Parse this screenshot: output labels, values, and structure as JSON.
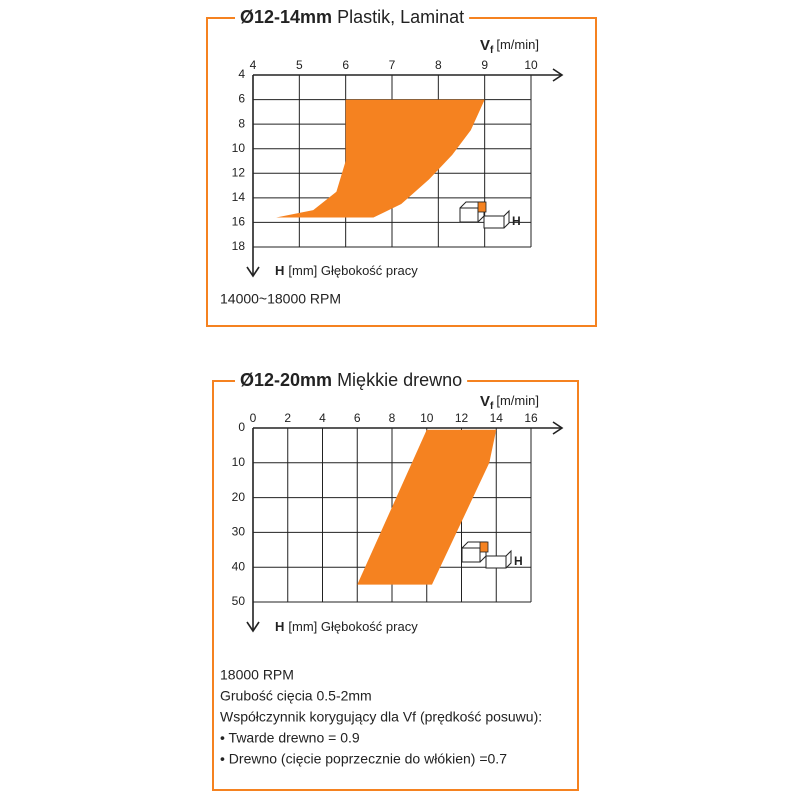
{
  "chart_data": [
    {
      "type": "area",
      "title_bold": "Ø12-14mm",
      "title": "Plastik, Laminat",
      "x_label": "V",
      "x_label_sub": "f",
      "x_unit": "[m/min]",
      "y_label": "H",
      "y_unit": "[mm] Głębokość pracy",
      "xlim": [
        4,
        10
      ],
      "xticks": [
        4,
        5,
        6,
        7,
        8,
        9,
        10
      ],
      "ylim": [
        4,
        18
      ],
      "yticks": [
        4,
        6,
        8,
        10,
        12,
        14,
        16,
        18
      ],
      "y_inverted": true,
      "grid": true,
      "color": "#f58220",
      "region": {
        "x": [
          6,
          9,
          8.7,
          8.3,
          7.8,
          7.2,
          6.6,
          4.5,
          5.3,
          5.8,
          6
        ],
        "y": [
          6,
          6,
          8.5,
          10.5,
          12.5,
          14.5,
          15.6,
          15.6,
          15,
          13.5,
          11
        ]
      },
      "icon_label": "H",
      "notes": [
        "14000~18000 RPM"
      ]
    },
    {
      "type": "area",
      "title_bold": "Ø12-20mm",
      "title": "Miękkie drewno",
      "x_label": "V",
      "x_label_sub": "f",
      "x_unit": "[m/min]",
      "y_label": "H",
      "y_unit": "[mm] Głębokość pracy",
      "xlim": [
        0,
        16
      ],
      "xticks": [
        0,
        2,
        4,
        6,
        8,
        10,
        12,
        14,
        16
      ],
      "ylim": [
        0,
        50
      ],
      "yticks": [
        0,
        10,
        20,
        30,
        40,
        50
      ],
      "y_inverted": true,
      "grid": true,
      "color": "#f58220",
      "region": {
        "x": [
          10,
          14,
          13.6,
          10.3,
          6
        ],
        "y": [
          0.5,
          0.5,
          10,
          45,
          45
        ]
      },
      "icon_label": "H",
      "notes": [
        "18000 RPM",
        "Grubość cięcia 0.5-2mm",
        "Współczynnik korygujący dla Vf (prędkość posuwu):",
        "• Twarde drewno = 0.9",
        "• Drewno (cięcie poprzecznie do włókien) =0.7"
      ]
    }
  ]
}
